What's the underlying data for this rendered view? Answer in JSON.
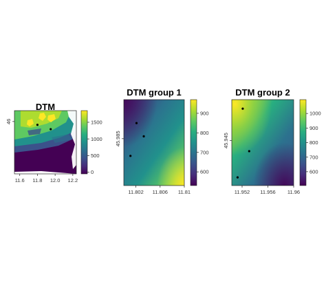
{
  "colors": {
    "viridis": [
      "#440154",
      "#472d7b",
      "#3b528b",
      "#2c728e",
      "#21918c",
      "#28ae80",
      "#5ec962",
      "#addc30",
      "#fde725"
    ]
  },
  "chart_data": [
    {
      "type": "heatmap",
      "title": "DTM",
      "xlabel": "",
      "ylabel": "",
      "xlim": [
        11.54,
        12.24
      ],
      "ylim": [
        45.52,
        46.1
      ],
      "x_ticks": [
        {
          "v": 11.6,
          "label": "11.6"
        },
        {
          "v": 11.8,
          "label": "11.8"
        },
        {
          "v": 12.0,
          "label": "12.0"
        },
        {
          "v": 12.2,
          "label": "12.2"
        }
      ],
      "y_ticks": [
        {
          "v": 46.0,
          "label": "46"
        }
      ],
      "legend_range": [
        -50,
        1850
      ],
      "legend_ticks": [
        0,
        500,
        1000,
        1500
      ],
      "points": [
        {
          "x": 11.8,
          "y": 45.97
        },
        {
          "x": 11.95,
          "y": 45.93
        }
      ]
    },
    {
      "type": "heatmap",
      "title": "DTM group 1",
      "xlabel": "",
      "ylabel": "",
      "xlim": [
        11.8,
        11.81
      ],
      "ylim": [
        45.979,
        45.99
      ],
      "x_ticks": [
        {
          "v": 11.802,
          "label": "11.802"
        },
        {
          "v": 11.806,
          "label": "11.806"
        },
        {
          "v": 11.81,
          "label": "11.81"
        }
      ],
      "y_ticks": [
        {
          "v": 45.985,
          "label": "45.985"
        }
      ],
      "legend_range": [
        530,
        970
      ],
      "legend_ticks": [
        600,
        700,
        800,
        900
      ],
      "points": [
        {
          "x": 11.8021,
          "y": 45.987
        },
        {
          "x": 11.8033,
          "y": 45.9853
        },
        {
          "x": 11.8011,
          "y": 45.9828
        }
      ]
    },
    {
      "type": "heatmap",
      "title": "DTM group 2",
      "xlabel": "",
      "ylabel": "",
      "xlim": [
        11.9504,
        11.96
      ],
      "ylim": [
        45.9395,
        45.95
      ],
      "x_ticks": [
        {
          "v": 11.952,
          "label": "11.952"
        },
        {
          "v": 11.956,
          "label": "11.956"
        },
        {
          "v": 11.96,
          "label": "11.96"
        }
      ],
      "y_ticks": [
        {
          "v": 45.945,
          "label": "45.945"
        }
      ],
      "legend_range": [
        505,
        1095
      ],
      "legend_ticks": [
        600,
        700,
        800,
        900,
        1000
      ],
      "points": [
        {
          "x": 11.9521,
          "y": 45.9489
        },
        {
          "x": 11.9531,
          "y": 45.9437
        },
        {
          "x": 11.9513,
          "y": 45.9405
        }
      ]
    }
  ]
}
